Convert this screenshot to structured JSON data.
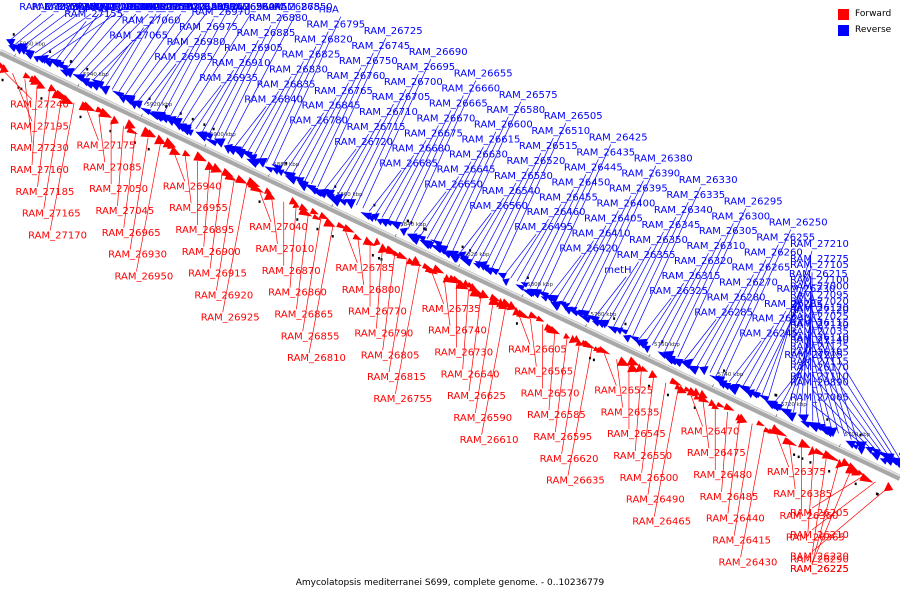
{
  "legend": [
    {
      "label": "Forward",
      "color": "#ff0000"
    },
    {
      "label": "Reverse",
      "color": "#0000ff"
    }
  ],
  "caption": "Amycolatopsis mediterranei S699, complete genome. - 0..10236779",
  "colors": {
    "forward": "#ff0000",
    "reverse": "#0000ff",
    "axis": "#808080"
  },
  "axis_ticks": [
    "5960 kbp",
    "5940 kbp",
    "5920 kbp",
    "5900 kbp",
    "5880 kbp",
    "5860 kbp",
    "5840 kbp",
    "5820 kbp",
    "5800 kbp",
    "5780 kbp",
    "5760 kbp",
    "5740 kbp",
    "5720 kbp",
    "5700 kbp"
  ],
  "reverse_labels": [
    "RAM_27285",
    "RAM_27205",
    "RAM_27280",
    "RAM_27200",
    "mhpA",
    "RAM_27190",
    "RAM_27180",
    "RAM_27155",
    "RAM_27145",
    "thrS",
    "RAM_27090",
    "RAM_27080",
    "RAM_27075",
    "RAM_27070",
    "RAM_27065",
    "RAM_27060",
    "RAM_27055",
    "RAM_27030",
    "RAM_27015",
    "RAM_26995",
    "RAM_26990",
    "RAM_26985",
    "RAM_26980",
    "RAM_26975",
    "RAM_26970",
    "RAM_26965",
    "RAM_26960",
    "RAM_26945",
    "RAM_26935",
    "RAM_26910",
    "RAM_26905",
    "RAM_26885",
    "RAM_26880",
    "RAM_26875",
    "RAM_26850",
    "RAM_26840",
    "RAM_26835",
    "RAM_26830",
    "RAM_26825",
    "RAM_26820",
    "RAM_26795",
    "ribA",
    "RAM_26780",
    "RAM_26845",
    "RAM_26765",
    "RAM_26760",
    "RAM_26750",
    "RAM_26745",
    "RAM_26725",
    "RAM_26720",
    "RAM_26715",
    "RAM_26710",
    "RAM_26705",
    "RAM_26700",
    "RAM_26695",
    "RAM_26690",
    "RAM_26685",
    "RAM_26680",
    "RAM_26675",
    "RAM_26670",
    "RAM_26665",
    "RAM_26660",
    "RAM_26655",
    "RAM_26650",
    "RAM_26645",
    "RAM_26630",
    "RAM_26615",
    "RAM_26600",
    "RAM_26580",
    "RAM_26575",
    "RAM_26560",
    "RAM_26540",
    "RAM_26530",
    "RAM_26520",
    "RAM_26515",
    "RAM_26510",
    "RAM_26505",
    "RAM_26495",
    "RAM_26460",
    "RAM_26455",
    "RAM_26450",
    "RAM_26445",
    "RAM_26435",
    "RAM_26425",
    "RAM_26420",
    "RAM_26410",
    "RAM_26405",
    "RAM_26400",
    "RAM_26395",
    "RAM_26390",
    "RAM_26380",
    "metH",
    "RAM_26355",
    "RAM_26350",
    "RAM_26345",
    "RAM_26340",
    "RAM_26335",
    "RAM_26330",
    "RAM_26325",
    "RAM_26315",
    "RAM_26320",
    "RAM_26310",
    "RAM_26305",
    "RAM_26300",
    "RAM_26295",
    "RAM_26285",
    "RAM_26280",
    "RAM_26270",
    "RAM_26265",
    "RAM_26260",
    "RAM_26255",
    "RAM_26250",
    "RAM_26245",
    "RAM_26240",
    "RAM_26235",
    "RAM_26230",
    "RAM_26215",
    "RAM_27275",
    "RAM_27210",
    "RAM_27215",
    "RAM_27140",
    "RAM_27130",
    "RAM_27120",
    "RAM_27095",
    "RAM_27100",
    "RAM_27105",
    "RAM_27110",
    "RAM_27115",
    "RAM_27125",
    "RAM_27035",
    "RAM_27025",
    "RAM_27020",
    "RAM_27000",
    "RAM_27005",
    "RAM_26890",
    "RAM_26170",
    "RAM_26105",
    "RAM_26110",
    "RAM_26115",
    "RAM_26120"
  ],
  "forward_labels": [
    "RAM_27240",
    "RAM_27195",
    "RAM_27230",
    "RAM_27160",
    "RAM_27185",
    "RAM_27165",
    "RAM_27170",
    "RAM_27175",
    "RAM_27085",
    "RAM_27050",
    "RAM_27045",
    "RAM_26965",
    "RAM_26930",
    "RAM_26950",
    "RAM_26940",
    "RAM_26955",
    "RAM_26895",
    "RAM_26900",
    "RAM_26915",
    "RAM_26920",
    "RAM_26925",
    "RAM_27040",
    "RAM_27010",
    "RAM_26870",
    "RAM_26860",
    "RAM_26865",
    "RAM_26855",
    "RAM_26810",
    "RAM_26785",
    "RAM_26800",
    "RAM_26770",
    "RAM_26790",
    "RAM_26805",
    "RAM_26815",
    "RAM_26755",
    "RAM_26735",
    "RAM_26740",
    "RAM_26730",
    "RAM_26640",
    "RAM_26625",
    "RAM_26590",
    "RAM_26610",
    "RAM_26605",
    "RAM_26565",
    "RAM_26570",
    "RAM_26585",
    "RAM_26595",
    "RAM_26620",
    "RAM_26635",
    "RAM_26525",
    "RAM_26535",
    "RAM_26545",
    "RAM_26550",
    "RAM_26500",
    "RAM_26490",
    "RAM_26465",
    "RAM_26470",
    "RAM_26475",
    "RAM_26480",
    "RAM_26485",
    "RAM_26440",
    "RAM_26415",
    "RAM_26430",
    "RAM_26375",
    "RAM_26385",
    "RAM_26360",
    "RAM_26365",
    "RAM_26290",
    "RAM_26275",
    "RAM_26225",
    "RAM_26205",
    "RAM_26210",
    "RAM_26220"
  ]
}
